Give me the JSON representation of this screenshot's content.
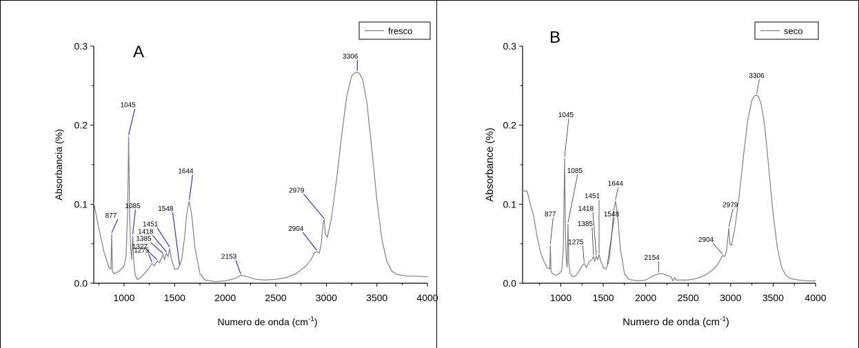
{
  "chart_data": [
    {
      "type": "line",
      "panel_label": "A",
      "xlabel_main": "Numero de onda (cm",
      "xlabel_sup": "-1",
      "xlabel_end": ")",
      "ylabel": "Absorbancia (%)",
      "xlim": [
        700,
        4000
      ],
      "ylim": [
        0,
        0.3
      ],
      "x_ticks": [
        1000,
        1500,
        2000,
        2500,
        3000,
        3500,
        4000
      ],
      "x_tick_labels": [
        "1000",
        "1500",
        "2000",
        "2500",
        "3000",
        "3500",
        "4000"
      ],
      "y_ticks": [
        0.0,
        0.1,
        0.2,
        0.3
      ],
      "y_tick_labels": [
        "0.0",
        "0.1",
        "0.2",
        "0.3"
      ],
      "legend_position": "top-right",
      "series": [
        {
          "name": "fresco",
          "color": "#808080",
          "x": [
            700,
            750,
            800,
            850,
            870,
            877,
            885,
            900,
            950,
            1000,
            1020,
            1035,
            1045,
            1055,
            1065,
            1075,
            1085,
            1095,
            1110,
            1130,
            1150,
            1170,
            1200,
            1240,
            1275,
            1300,
            1327,
            1350,
            1370,
            1385,
            1400,
            1418,
            1435,
            1451,
            1470,
            1500,
            1530,
            1548,
            1570,
            1600,
            1620,
            1644,
            1670,
            1700,
            1750,
            1800,
            1900,
            2000,
            2100,
            2153,
            2200,
            2300,
            2400,
            2500,
            2600,
            2700,
            2800,
            2850,
            2880,
            2904,
            2930,
            2950,
            2970,
            2979,
            2990,
            3010,
            3050,
            3100,
            3150,
            3200,
            3250,
            3280,
            3306,
            3330,
            3360,
            3400,
            3450,
            3500,
            3550,
            3600,
            3650,
            3700,
            3750,
            3800,
            3900,
            4000
          ],
          "y": [
            0.102,
            0.07,
            0.04,
            0.02,
            0.018,
            0.062,
            0.015,
            0.012,
            0.015,
            0.022,
            0.035,
            0.09,
            0.186,
            0.085,
            0.045,
            0.03,
            0.06,
            0.028,
            0.01,
            0.005,
            0.006,
            0.008,
            0.012,
            0.018,
            0.025,
            0.022,
            0.028,
            0.026,
            0.032,
            0.036,
            0.03,
            0.038,
            0.034,
            0.044,
            0.03,
            0.018,
            0.018,
            0.022,
            0.03,
            0.06,
            0.088,
            0.104,
            0.085,
            0.045,
            0.012,
            0.004,
            0.002,
            0.003,
            0.006,
            0.01,
            0.009,
            0.005,
            0.004,
            0.005,
            0.007,
            0.012,
            0.022,
            0.03,
            0.038,
            0.04,
            0.038,
            0.05,
            0.078,
            0.08,
            0.062,
            0.058,
            0.082,
            0.13,
            0.185,
            0.235,
            0.262,
            0.266,
            0.267,
            0.265,
            0.258,
            0.23,
            0.17,
            0.105,
            0.055,
            0.027,
            0.015,
            0.011,
            0.01,
            0.009,
            0.009,
            0.008
          ]
        }
      ],
      "annotations": [
        {
          "text": "877",
          "x": 877,
          "y": 0.062
        },
        {
          "text": "1045",
          "x": 1045,
          "y": 0.186
        },
        {
          "text": "1085",
          "x": 1085,
          "y": 0.06
        },
        {
          "text": "1275",
          "x": 1275,
          "y": 0.025
        },
        {
          "text": "1327",
          "x": 1327,
          "y": 0.028
        },
        {
          "text": "1385",
          "x": 1385,
          "y": 0.036
        },
        {
          "text": "1418",
          "x": 1418,
          "y": 0.038
        },
        {
          "text": "1451",
          "x": 1451,
          "y": 0.044
        },
        {
          "text": "1548",
          "x": 1548,
          "y": 0.022
        },
        {
          "text": "1644",
          "x": 1644,
          "y": 0.104
        },
        {
          "text": "2153",
          "x": 2153,
          "y": 0.01
        },
        {
          "text": "2904",
          "x": 2904,
          "y": 0.04
        },
        {
          "text": "2979",
          "x": 2979,
          "y": 0.08
        },
        {
          "text": "3306",
          "x": 3306,
          "y": 0.267
        }
      ]
    },
    {
      "type": "line",
      "panel_label": "B",
      "xlabel_main": "Numero de onda (cm",
      "xlabel_sup": "-1",
      "xlabel_end": ")",
      "ylabel": "Absorbance (%)",
      "xlim": [
        550,
        4000
      ],
      "ylim": [
        0,
        0.3
      ],
      "x_ticks": [
        1000,
        1500,
        2000,
        2500,
        3000,
        3500,
        4000
      ],
      "x_tick_labels": [
        "1000",
        "1500",
        "2000",
        "2500",
        "3000",
        "3500",
        "4000"
      ],
      "y_ticks": [
        0.0,
        0.1,
        0.2,
        0.3
      ],
      "y_tick_labels": [
        "0.0",
        "0.1",
        "0.2",
        "0.3"
      ],
      "legend_position": "top-right",
      "series": [
        {
          "name": "seco",
          "color": "#808080",
          "x": [
            550,
            600,
            620,
            640,
            680,
            720,
            760,
            800,
            840,
            870,
            877,
            885,
            900,
            940,
            980,
            1010,
            1030,
            1045,
            1055,
            1065,
            1075,
            1085,
            1095,
            1110,
            1140,
            1180,
            1220,
            1250,
            1275,
            1300,
            1340,
            1370,
            1385,
            1400,
            1418,
            1435,
            1451,
            1470,
            1500,
            1530,
            1548,
            1570,
            1600,
            1620,
            1644,
            1670,
            1700,
            1750,
            1800,
            1900,
            2000,
            2100,
            2154,
            2200,
            2250,
            2300,
            2320,
            2340,
            2360,
            2400,
            2500,
            2600,
            2700,
            2800,
            2850,
            2880,
            2904,
            2930,
            2950,
            2970,
            2979,
            2990,
            3010,
            3050,
            3100,
            3150,
            3200,
            3250,
            3280,
            3306,
            3330,
            3360,
            3400,
            3450,
            3500,
            3550,
            3600,
            3650,
            3700,
            3750,
            3800,
            3900,
            4000
          ],
          "y": [
            0.116,
            0.117,
            0.11,
            0.1,
            0.085,
            0.06,
            0.04,
            0.028,
            0.02,
            0.018,
            0.048,
            0.016,
            0.012,
            0.01,
            0.012,
            0.016,
            0.045,
            0.158,
            0.06,
            0.03,
            0.02,
            0.075,
            0.025,
            0.012,
            0.008,
            0.01,
            0.016,
            0.022,
            0.025,
            0.02,
            0.028,
            0.03,
            0.034,
            0.028,
            0.034,
            0.03,
            0.036,
            0.028,
            0.02,
            0.018,
            0.022,
            0.03,
            0.06,
            0.09,
            0.104,
            0.085,
            0.045,
            0.012,
            0.005,
            0.003,
            0.004,
            0.01,
            0.012,
            0.012,
            0.01,
            0.008,
            0.003,
            0.007,
            0.004,
            0.004,
            0.004,
            0.006,
            0.01,
            0.018,
            0.024,
            0.03,
            0.035,
            0.034,
            0.04,
            0.06,
            0.07,
            0.05,
            0.048,
            0.07,
            0.11,
            0.16,
            0.205,
            0.232,
            0.237,
            0.238,
            0.236,
            0.226,
            0.2,
            0.145,
            0.088,
            0.045,
            0.02,
            0.01,
            0.006,
            0.005,
            0.004,
            0.003,
            0.003
          ]
        }
      ],
      "annotations": [
        {
          "text": "877",
          "x": 877,
          "y": 0.048
        },
        {
          "text": "1045",
          "x": 1045,
          "y": 0.158
        },
        {
          "text": "1085",
          "x": 1085,
          "y": 0.075
        },
        {
          "text": "1275",
          "x": 1275,
          "y": 0.025
        },
        {
          "text": "1385",
          "x": 1385,
          "y": 0.034
        },
        {
          "text": "1418",
          "x": 1418,
          "y": 0.034
        },
        {
          "text": "1451",
          "x": 1451,
          "y": 0.036
        },
        {
          "text": "1548",
          "x": 1548,
          "y": 0.022
        },
        {
          "text": "1644",
          "x": 1644,
          "y": 0.104
        },
        {
          "text": "2154",
          "x": 2154,
          "y": 0.012
        },
        {
          "text": "2904",
          "x": 2904,
          "y": 0.035
        },
        {
          "text": "2979",
          "x": 2979,
          "y": 0.07
        },
        {
          "text": "3306",
          "x": 3306,
          "y": 0.238
        }
      ]
    }
  ]
}
